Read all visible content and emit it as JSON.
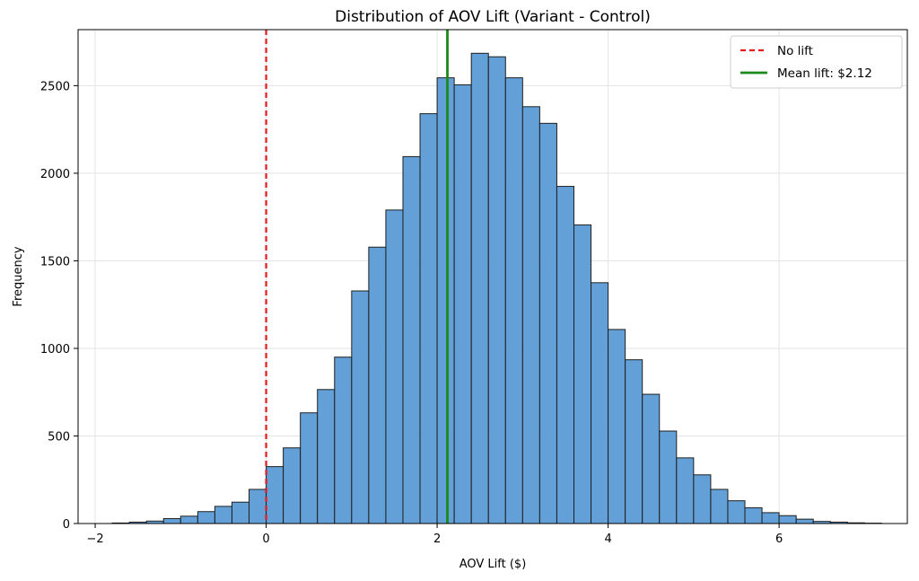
{
  "chart_data": {
    "type": "bar",
    "title": "Distribution of AOV Lift (Variant - Control)",
    "xlabel": "AOV Lift ($)",
    "ylabel": "Frequency",
    "xlim": [
      -2.2,
      7.5
    ],
    "ylim": [
      0,
      2820
    ],
    "x_ticks": [
      -2,
      0,
      2,
      4,
      6
    ],
    "x_tick_labels": [
      "−2",
      "0",
      "2",
      "4",
      "6"
    ],
    "y_ticks": [
      0,
      500,
      1000,
      1500,
      2000,
      2500
    ],
    "y_tick_labels": [
      "0",
      "500",
      "1000",
      "1500",
      "2000",
      "2500"
    ],
    "grid": true,
    "legend_position": "top-right",
    "bar_color": "#5b9bd5",
    "bar_edge_color": "#1f1f1f",
    "bin_edges": [
      -1.8,
      -1.6,
      -1.4,
      -1.2,
      -1.0,
      -0.8,
      -0.6,
      -0.4,
      -0.2,
      0.0,
      0.2,
      0.4,
      0.6,
      0.8,
      1.0,
      1.2,
      1.4,
      1.6,
      1.8,
      2.0,
      2.2,
      2.4,
      2.6,
      2.8,
      3.0,
      3.2,
      3.4,
      3.6,
      3.8,
      4.0,
      4.2,
      4.4,
      4.6,
      4.8,
      5.0,
      5.2,
      5.4,
      5.6,
      5.8,
      6.0,
      6.2,
      6.4,
      6.6,
      6.8,
      7.0,
      7.2
    ],
    "counts": [
      3,
      8,
      14,
      28,
      42,
      68,
      98,
      122,
      195,
      325,
      432,
      632,
      765,
      950,
      1328,
      1578,
      1790,
      2095,
      2340,
      2545,
      2505,
      2685,
      2665,
      2545,
      2380,
      2285,
      1925,
      1705,
      1375,
      1108,
      935,
      738,
      528,
      375,
      278,
      195,
      130,
      90,
      62,
      45,
      25,
      12,
      8,
      4,
      2
    ],
    "reference_lines": [
      {
        "name": "No lift",
        "x": 0,
        "color": "#e41a1c",
        "style": "dashed"
      },
      {
        "name": "Mean lift: $2.12",
        "x": 2.12,
        "color": "#1a8a1a",
        "style": "solid"
      }
    ]
  }
}
